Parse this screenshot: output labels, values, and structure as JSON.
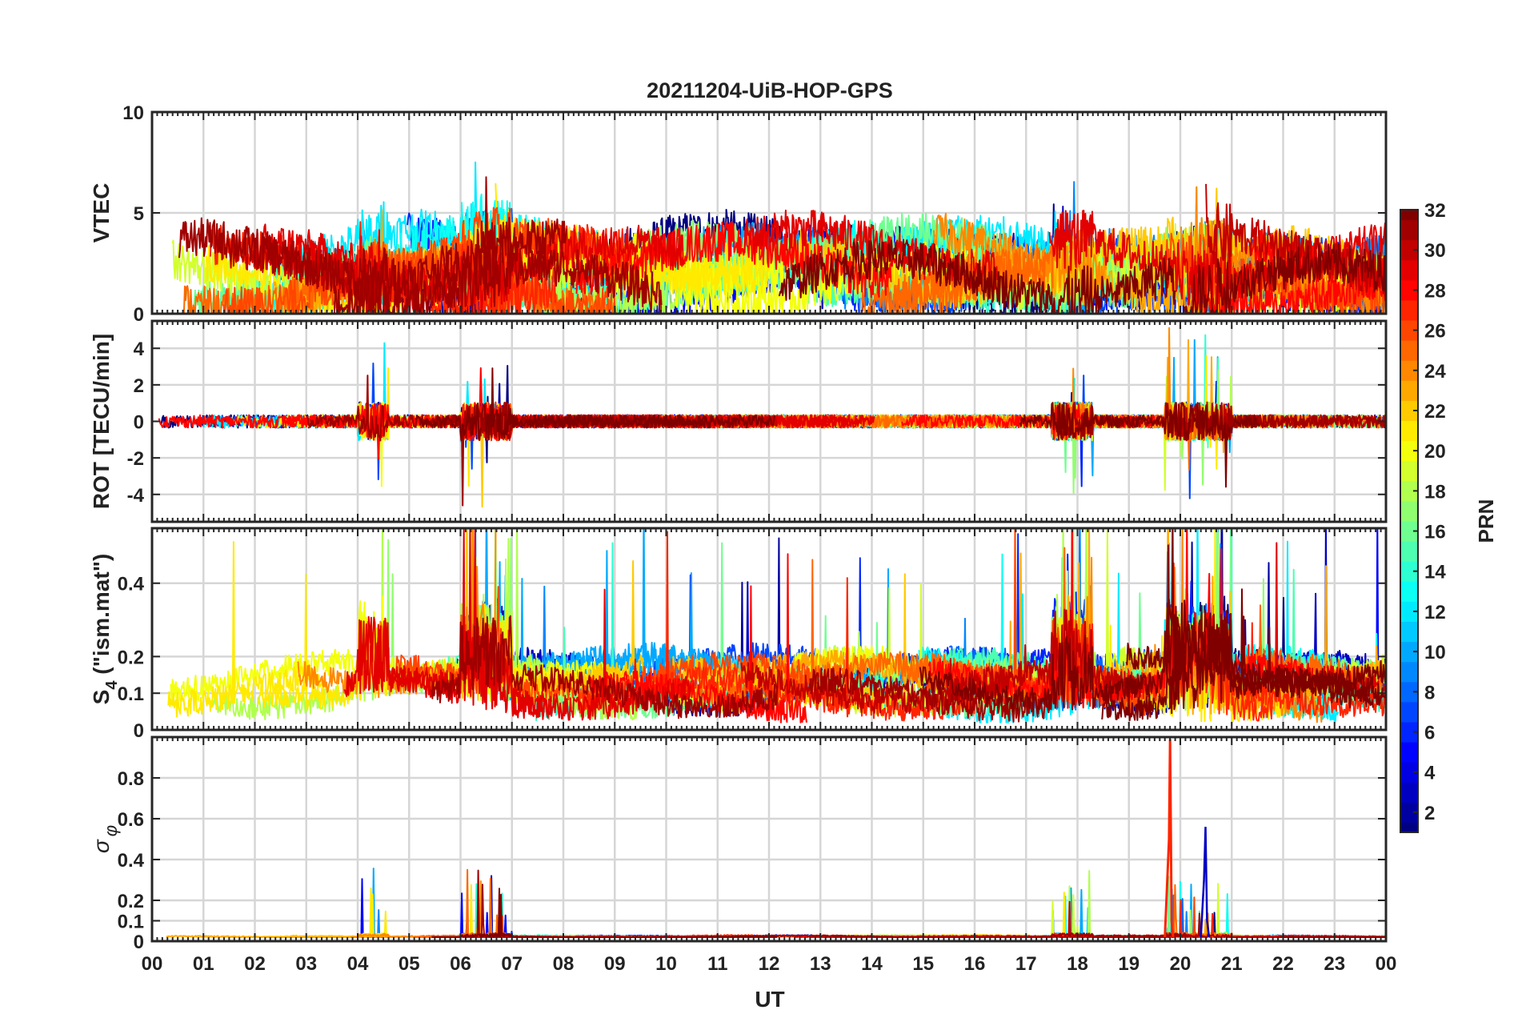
{
  "chart_data": {
    "type": "line",
    "title": "20211204-UiB-HOP-GPS",
    "xlabel": "UT",
    "x_tick_labels": [
      "00",
      "01",
      "02",
      "03",
      "04",
      "05",
      "06",
      "07",
      "08",
      "09",
      "10",
      "11",
      "12",
      "13",
      "14",
      "15",
      "16",
      "17",
      "18",
      "19",
      "20",
      "21",
      "22",
      "23",
      "00"
    ],
    "x_range_hours": [
      0,
      24
    ],
    "grid": true,
    "colorbar": {
      "label": "PRN",
      "range": [
        1,
        32
      ],
      "ticks": [
        "2",
        "4",
        "6",
        "8",
        "10",
        "12",
        "14",
        "16",
        "18",
        "20",
        "22",
        "24",
        "26",
        "28",
        "30",
        "32"
      ],
      "colormap": "jet"
    },
    "panels": [
      {
        "id": "vtec",
        "ylabel": "VTEC",
        "ylim": [
          0,
          10
        ],
        "y_ticks": [
          0,
          5,
          10
        ],
        "y_tick_labels": [
          "0",
          "5",
          "10"
        ],
        "baseline": 2.2,
        "noise": 1.0,
        "trend": 1.0,
        "spike_amp": 2.5
      },
      {
        "id": "rot",
        "ylabel": "ROT [TECU/min]",
        "ylim": [
          -5.5,
          5.5
        ],
        "y_ticks": [
          -4,
          -2,
          0,
          2,
          4
        ],
        "y_tick_labels": [
          "-4",
          "-2",
          "0",
          "2",
          "4"
        ],
        "baseline": 0,
        "noise": 0.35,
        "trend": 0,
        "spike_amp": 4.5
      },
      {
        "id": "s4",
        "ylabel": "S4 (\"ism.mat\")",
        "ylabel_parts": [
          "S",
          "4",
          " (\"ism.mat\")"
        ],
        "ylim": [
          0,
          0.55
        ],
        "y_ticks": [
          0,
          0.1,
          0.2,
          0.4
        ],
        "y_tick_labels": [
          "0",
          "0.1",
          "0.2",
          "0.4"
        ],
        "baseline": 0.09,
        "noise": 0.07,
        "trend": 0.04,
        "spike_amp": 0.45
      },
      {
        "id": "sigphi",
        "ylabel": "σ φ",
        "ylabel_parts": [
          "σ",
          "φ"
        ],
        "ylim": [
          0,
          1.0
        ],
        "y_ticks": [
          0,
          0.1,
          0.2,
          0.4,
          0.6,
          0.8
        ],
        "y_tick_labels": [
          "0",
          "0.1",
          "0.2",
          "0.4",
          "0.6",
          "0.8"
        ],
        "baseline": 0.015,
        "noise": 0.01,
        "trend": 0.005,
        "spike_amp": 0.95
      }
    ],
    "disturbed_intervals_ut": [
      [
        4.0,
        4.6
      ],
      [
        6.0,
        7.0
      ],
      [
        17.5,
        18.3
      ],
      [
        19.7,
        21.0
      ]
    ],
    "prn_series": [
      1,
      2,
      3,
      5,
      6,
      7,
      8,
      9,
      10,
      12,
      13,
      14,
      15,
      16,
      17,
      18,
      19,
      20,
      21,
      22,
      23,
      24,
      25,
      26,
      27,
      28,
      29,
      30,
      31,
      32
    ]
  }
}
